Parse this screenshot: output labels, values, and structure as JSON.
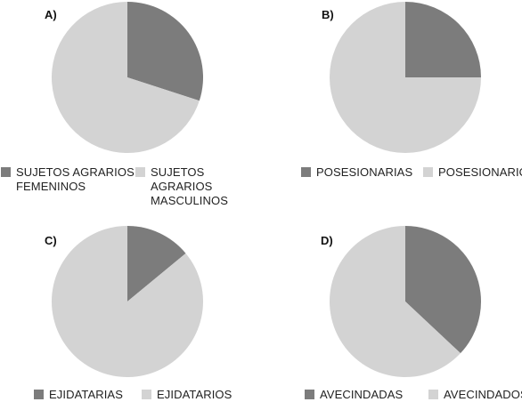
{
  "colors": {
    "dark": "#7c7c7c",
    "light": "#d3d3d3"
  },
  "chart_data": [
    {
      "type": "pie",
      "label": "A)",
      "slices": [
        {
          "name": "SUJETOS AGRARIOS\nFEMENINOS",
          "value": 30,
          "color": "#7c7c7c"
        },
        {
          "name": "SUJETOS AGRARIOS\nMASCULINOS",
          "value": 70,
          "color": "#d3d3d3"
        }
      ]
    },
    {
      "type": "pie",
      "label": "B)",
      "slices": [
        {
          "name": "POSESIONARIAS",
          "value": 25,
          "color": "#7c7c7c"
        },
        {
          "name": "POSESIONARIOS",
          "value": 75,
          "color": "#d3d3d3"
        }
      ]
    },
    {
      "type": "pie",
      "label": "C)",
      "slices": [
        {
          "name": "EJIDATARIAS",
          "value": 14,
          "color": "#7c7c7c"
        },
        {
          "name": "EJIDATARIOS",
          "value": 86,
          "color": "#d3d3d3"
        }
      ]
    },
    {
      "type": "pie",
      "label": "D)",
      "slices": [
        {
          "name": "AVECINDADAS",
          "value": 37,
          "color": "#7c7c7c"
        },
        {
          "name": "AVECINDADOS",
          "value": 63,
          "color": "#d3d3d3"
        }
      ]
    }
  ]
}
